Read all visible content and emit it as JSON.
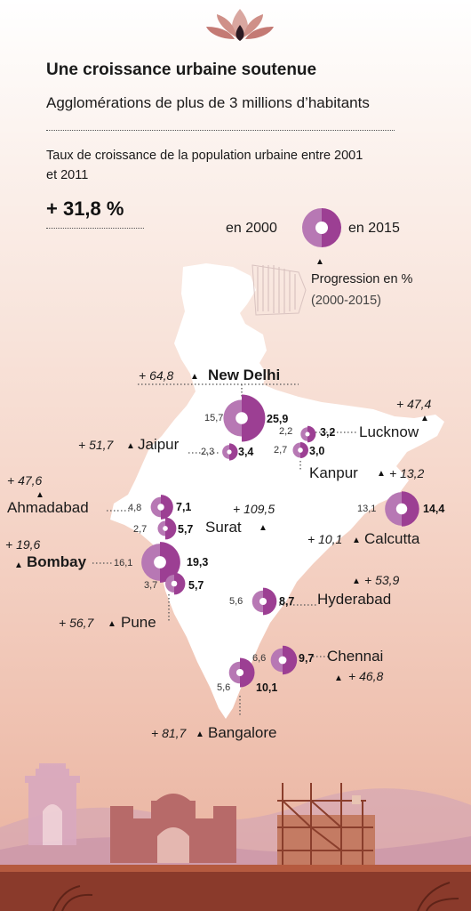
{
  "title": "Une croissance urbaine soutenue",
  "subtitle": "Agglomérations de plus de 3 millions d’habitants",
  "growth": {
    "description": "Taux de croissance de la population urbaine entre 2001 et 2011",
    "value": "+ 31,8 %"
  },
  "legend": {
    "label_2000": "en 2000",
    "label_2015": "en 2015",
    "triangle": "▲",
    "progression": "Progression en %",
    "period": "(2000-2015)"
  },
  "colors": {
    "pop_2000": "#b778b4",
    "pop_2015": "#9c3f93",
    "map": "#ffffff"
  },
  "icons": [
    "lotus-icon",
    "triangle-up-icon",
    "india-gate-icon",
    "gateway-of-india-icon",
    "scaffolding-building-icon"
  ],
  "cities": [
    {
      "name": "New Delhi",
      "bold": true,
      "pop_2000": "15,7",
      "pop_2015": "25,9",
      "progression": "+ 64,8"
    },
    {
      "name": "Lucknow",
      "bold": false,
      "pop_2000": "2,2",
      "pop_2015": "3,2",
      "progression": "+ 47,4"
    },
    {
      "name": "Jaipur",
      "bold": false,
      "pop_2000": "2,3",
      "pop_2015": "3,4",
      "progression": "+ 51,7"
    },
    {
      "name": "Kanpur",
      "bold": false,
      "pop_2000": "2,7",
      "pop_2015": "3,0",
      "progression": "+ 13,2"
    },
    {
      "name": "Ahmadabad",
      "bold": false,
      "pop_2000": "4,8",
      "pop_2015": "7,1",
      "progression": "+ 47,6"
    },
    {
      "name": "Surat",
      "bold": false,
      "pop_2000": "2,7",
      "pop_2015": "5,7",
      "progression": "+ 109,5"
    },
    {
      "name": "Calcutta",
      "bold": false,
      "pop_2000": "13,1",
      "pop_2015": "14,4",
      "progression": "+ 10,1"
    },
    {
      "name": "Bombay",
      "bold": true,
      "pop_2000": "16,1",
      "pop_2015": "19,3",
      "progression": "+ 19,6"
    },
    {
      "name": "Pune",
      "bold": false,
      "pop_2000": "3,7",
      "pop_2015": "5,7",
      "progression": "+ 56,7"
    },
    {
      "name": "Hyderabad",
      "bold": false,
      "pop_2000": "5,6",
      "pop_2015": "8,7",
      "progression": "+ 53,9"
    },
    {
      "name": "Chennai",
      "bold": false,
      "pop_2000": "6,6",
      "pop_2015": "9,7",
      "progression": "+ 46,8"
    },
    {
      "name": "Bangalore",
      "bold": false,
      "pop_2000": "5,6",
      "pop_2015": "10,1",
      "progression": "+ 81,7"
    }
  ]
}
